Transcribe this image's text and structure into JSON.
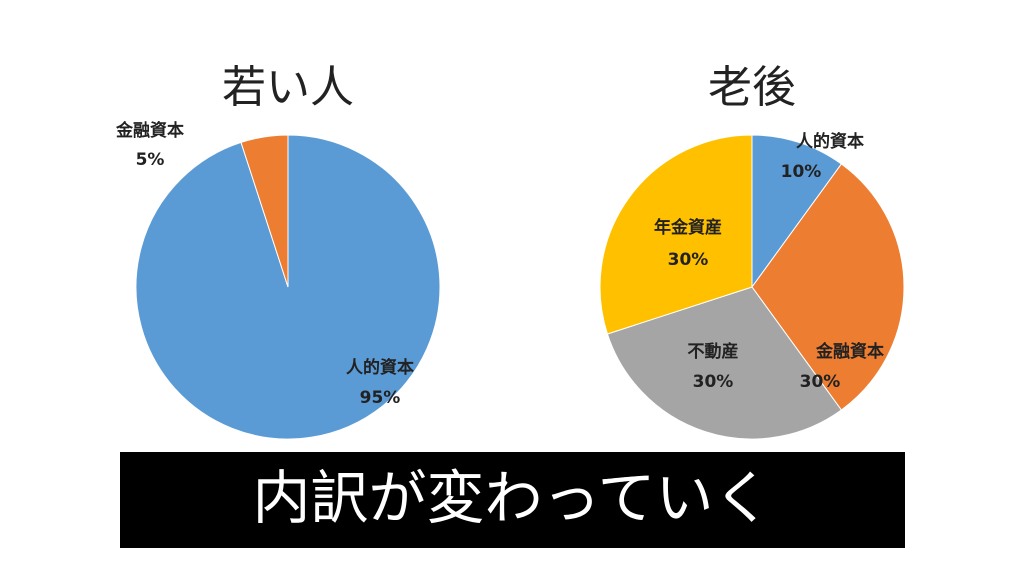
{
  "chart_data": [
    {
      "type": "pie",
      "title": "若い人",
      "categories": [
        "人的資本",
        "金融資本"
      ],
      "values": [
        95,
        5
      ],
      "value_labels": [
        "95%",
        "5%"
      ],
      "colors": [
        "#5b9bd5",
        "#ed7d31"
      ]
    },
    {
      "type": "pie",
      "title": "老後",
      "categories": [
        "人的資本",
        "金融資本",
        "不動産",
        "年金資産"
      ],
      "values": [
        10,
        30,
        30,
        30
      ],
      "value_labels": [
        "10%",
        "30%",
        "30%",
        "30%"
      ],
      "colors": [
        "#5b9bd5",
        "#ed7d31",
        "#a5a5a5",
        "#ffc000"
      ]
    }
  ],
  "banner": "内訳が変わっていく"
}
